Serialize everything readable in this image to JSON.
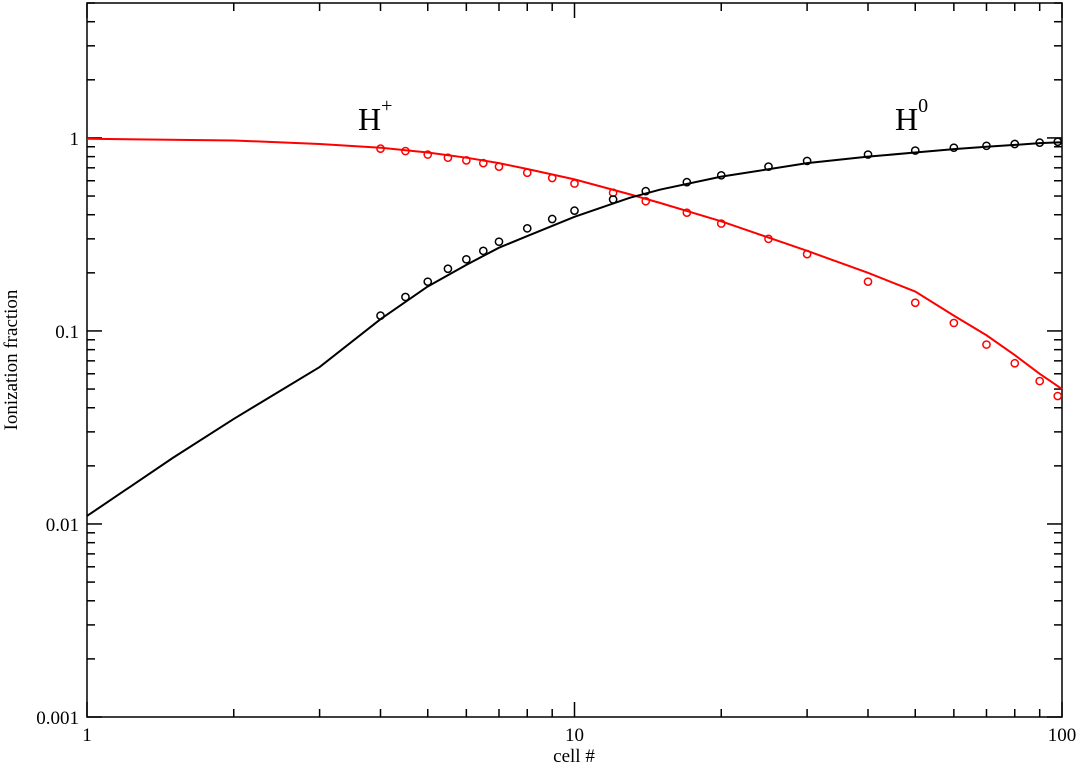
{
  "chart_data": {
    "type": "line",
    "x_label": "cell #",
    "y_label": "Ionization fraction",
    "xscale": "log",
    "yscale": "log",
    "xlim": [
      1,
      100
    ],
    "ylim": [
      0.001,
      5
    ],
    "xticks": [
      1,
      10,
      100
    ],
    "yticks": [
      0.001,
      0.01,
      0.1,
      1
    ],
    "xminorticks": [
      2,
      3,
      4,
      5,
      6,
      7,
      8,
      9,
      20,
      30,
      40,
      50,
      60,
      70,
      80,
      90
    ],
    "yminorticks": [
      0.002,
      0.003,
      0.004,
      0.005,
      0.006,
      0.007,
      0.008,
      0.009,
      0.02,
      0.03,
      0.04,
      0.05,
      0.06,
      0.07,
      0.08,
      0.09,
      0.2,
      0.3,
      0.4,
      0.5,
      0.6,
      0.7,
      0.8,
      0.9,
      2,
      3,
      4,
      5
    ],
    "annotations": [
      {
        "text": "H",
        "sup": "+"
      },
      {
        "text": "H",
        "sup": "0"
      }
    ],
    "series": [
      {
        "color": "#ff0000",
        "style": "line",
        "x": [
          1,
          2,
          3,
          4,
          5,
          6,
          7,
          8,
          10,
          13,
          15,
          20,
          30,
          40,
          50,
          60,
          70,
          80,
          90,
          100
        ],
        "values": [
          0.99,
          0.97,
          0.93,
          0.89,
          0.84,
          0.79,
          0.74,
          0.69,
          0.61,
          0.51,
          0.46,
          0.37,
          0.26,
          0.2,
          0.16,
          0.12,
          0.095,
          0.075,
          0.06,
          0.05
        ]
      },
      {
        "color": "#000000",
        "style": "line",
        "x": [
          1,
          1.5,
          2,
          3,
          4,
          5,
          6,
          7,
          8,
          10,
          13,
          15,
          20,
          30,
          40,
          50,
          60,
          70,
          80,
          90,
          100
        ],
        "values": [
          0.011,
          0.022,
          0.035,
          0.065,
          0.115,
          0.17,
          0.22,
          0.27,
          0.31,
          0.39,
          0.49,
          0.54,
          0.63,
          0.74,
          0.8,
          0.84,
          0.875,
          0.9,
          0.92,
          0.94,
          0.95
        ]
      },
      {
        "color": "#ff0000",
        "style": "markers",
        "x": [
          4,
          4.5,
          5,
          5.5,
          6,
          6.5,
          7,
          8,
          9,
          10,
          12,
          14,
          17,
          20,
          25,
          30,
          40,
          50,
          60,
          70,
          80,
          90,
          98
        ],
        "values": [
          0.88,
          0.855,
          0.82,
          0.79,
          0.765,
          0.74,
          0.71,
          0.66,
          0.62,
          0.58,
          0.52,
          0.47,
          0.41,
          0.36,
          0.3,
          0.25,
          0.18,
          0.14,
          0.11,
          0.085,
          0.068,
          0.055,
          0.046
        ]
      },
      {
        "color": "#000000",
        "style": "markers",
        "x": [
          4,
          4.5,
          5,
          5.5,
          6,
          6.5,
          7,
          8,
          9,
          10,
          12,
          14,
          17,
          20,
          25,
          30,
          40,
          50,
          60,
          70,
          80,
          90,
          98
        ],
        "values": [
          0.12,
          0.15,
          0.18,
          0.21,
          0.235,
          0.26,
          0.29,
          0.34,
          0.38,
          0.42,
          0.48,
          0.53,
          0.59,
          0.64,
          0.71,
          0.76,
          0.82,
          0.86,
          0.89,
          0.91,
          0.93,
          0.945,
          0.955
        ]
      }
    ]
  }
}
